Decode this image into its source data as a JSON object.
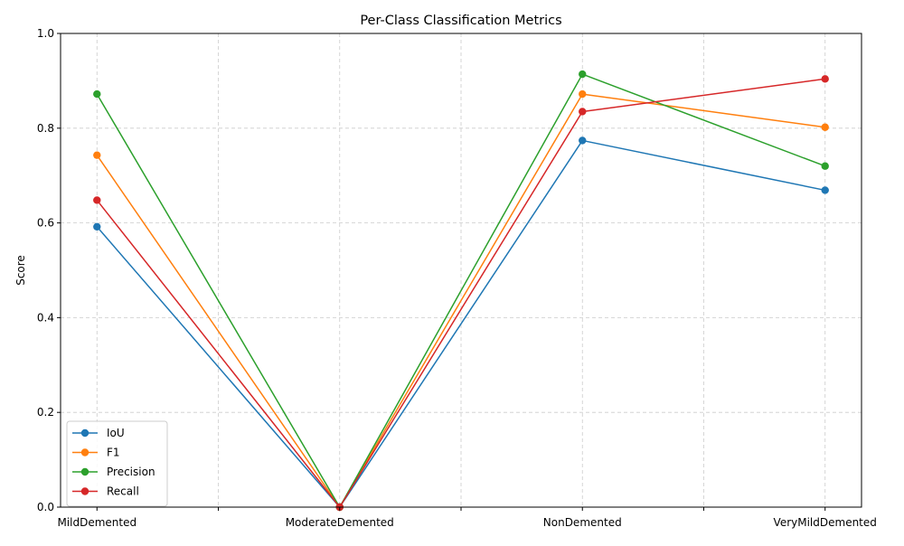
{
  "chart_data": {
    "type": "line",
    "title": "Per-Class Classification Metrics",
    "xlabel": "",
    "ylabel": "Score",
    "categories": [
      "MildDemented",
      "ModerateDemented",
      "NonDemented",
      "VeryMildDemented"
    ],
    "ylim": [
      0,
      1
    ],
    "yticks": [
      0.0,
      0.2,
      0.4,
      0.6,
      0.8,
      1.0
    ],
    "ytick_labels": [
      "0.0",
      "0.2",
      "0.4",
      "0.6",
      "0.8",
      "1.0"
    ],
    "grid": true,
    "legend_position": "lower-left",
    "series": [
      {
        "name": "IoU",
        "color": "#1f77b4",
        "values": [
          0.592,
          0.0,
          0.774,
          0.669
        ]
      },
      {
        "name": "F1",
        "color": "#ff7f0e",
        "values": [
          0.743,
          0.0,
          0.872,
          0.802
        ]
      },
      {
        "name": "Precision",
        "color": "#2ca02c",
        "values": [
          0.872,
          0.0,
          0.914,
          0.72
        ]
      },
      {
        "name": "Recall",
        "color": "#d62728",
        "values": [
          0.648,
          0.0,
          0.835,
          0.904
        ]
      }
    ]
  }
}
